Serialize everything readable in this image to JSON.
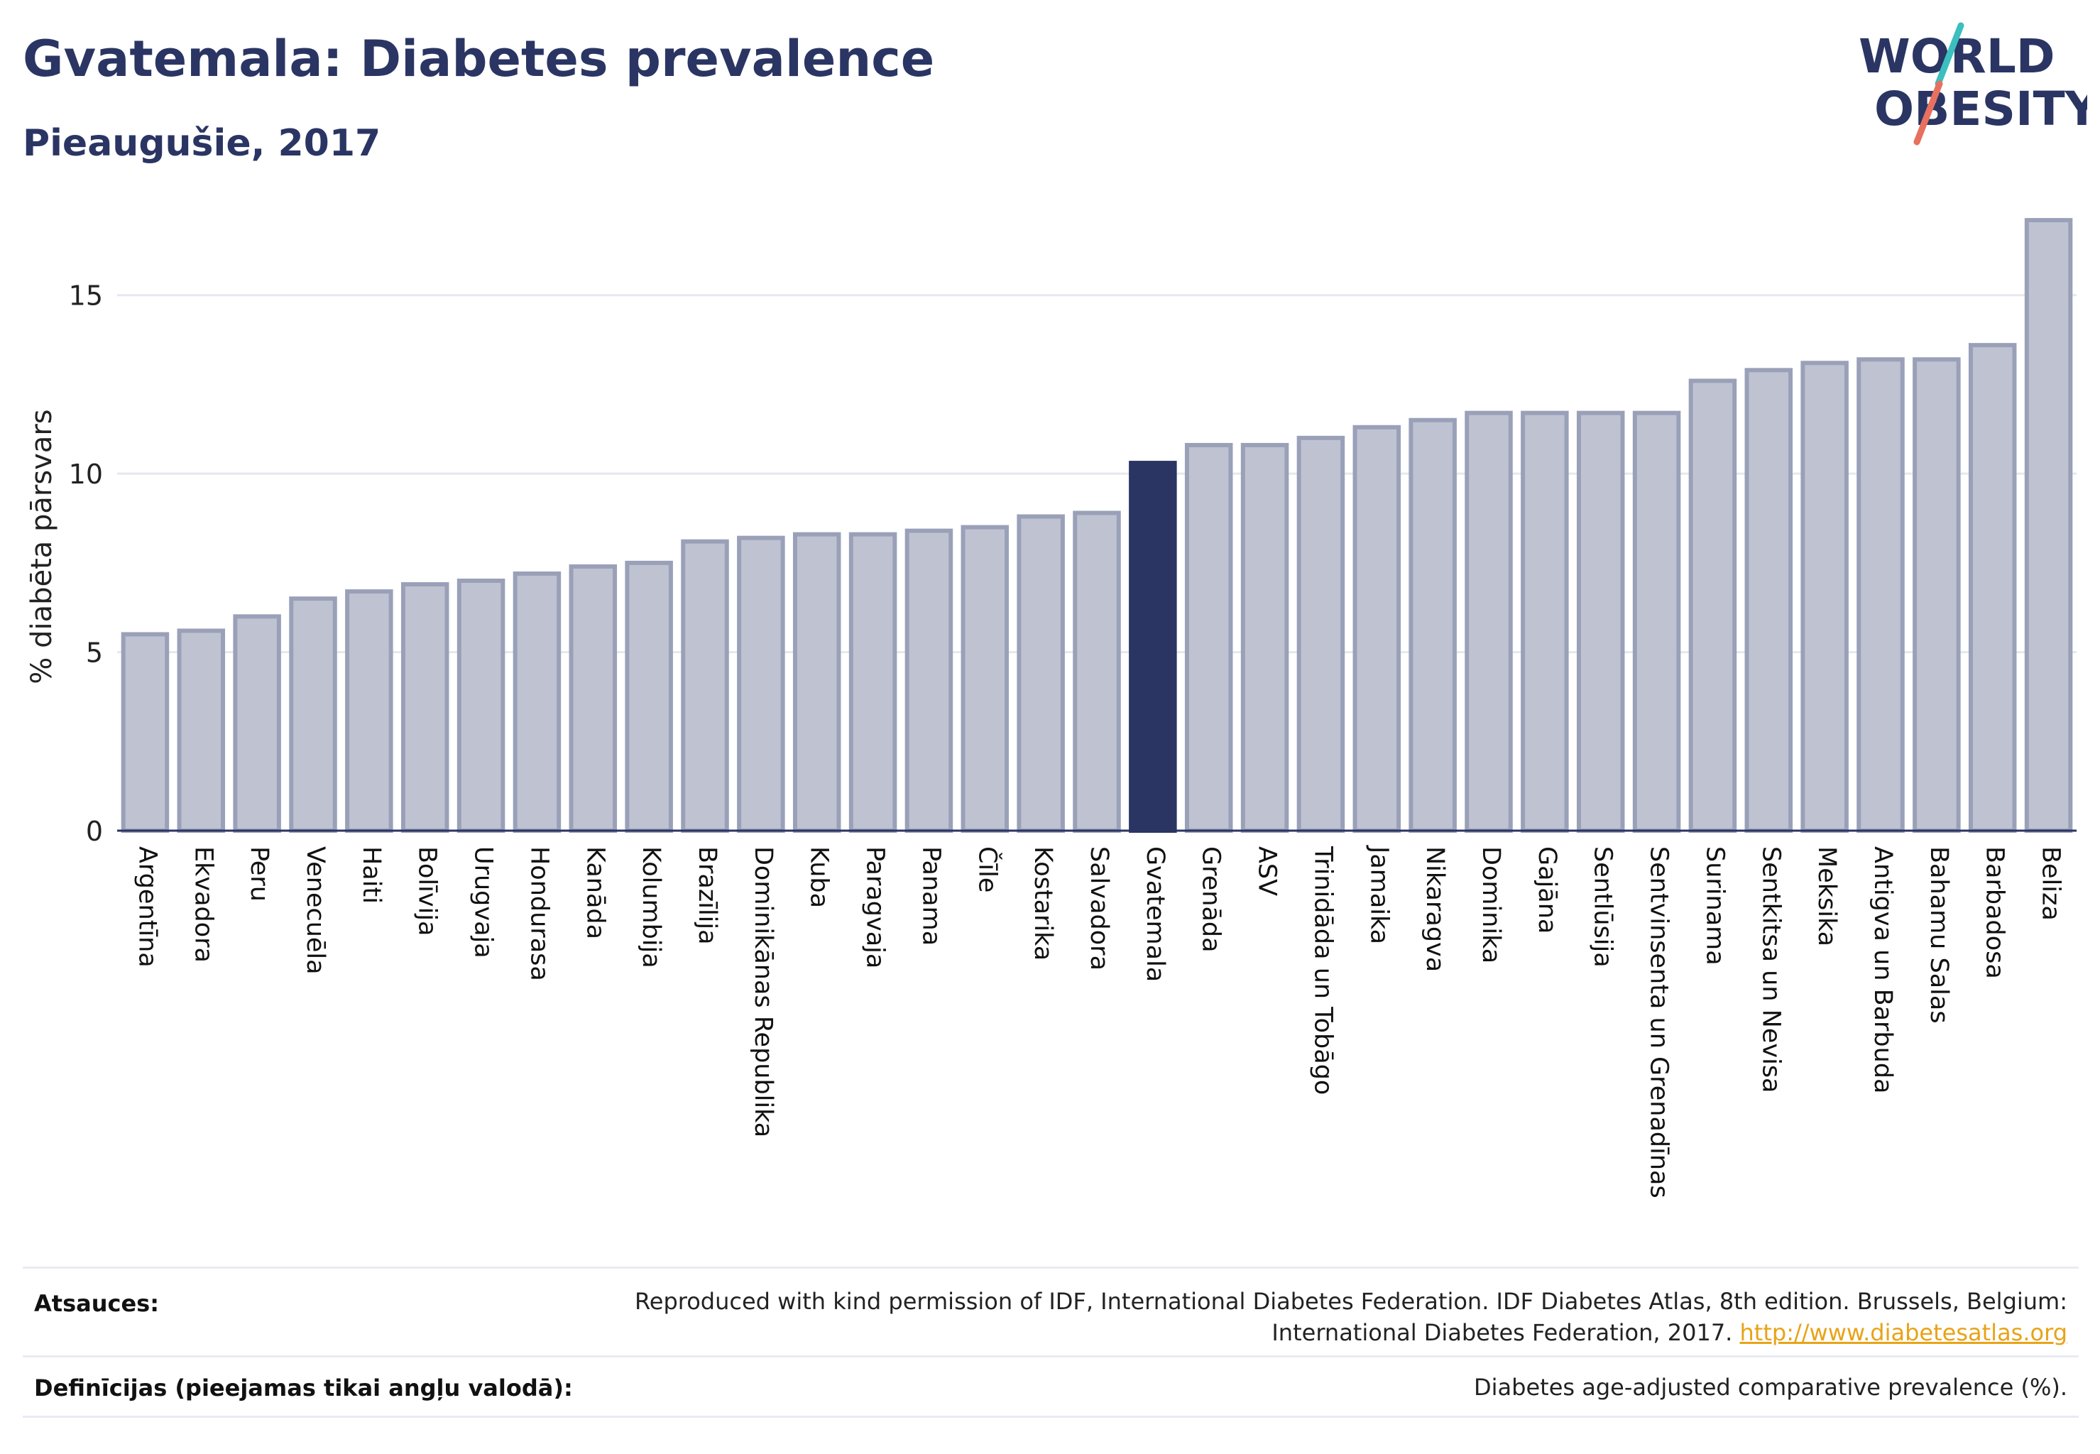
{
  "header": {
    "title": "Gvatemala: Diabetes prevalence",
    "subtitle": "Pieaugušie, 2017"
  },
  "logo": {
    "line1": "WORLD",
    "line2": "OBESITY",
    "colors": {
      "text": "#2a3563",
      "slash_teal": "#3bbfbf",
      "slash_coral": "#e8705f"
    }
  },
  "chart_data": {
    "type": "bar",
    "ylabel": "% diabēta pārsvars",
    "ylim": [
      0,
      17.5
    ],
    "yticks": [
      0,
      5,
      10,
      15
    ],
    "grid": true,
    "highlight": "Gvatemala",
    "colors": {
      "bar": "#bfc3d1",
      "bar_border": "#9aa0b8",
      "highlight": "#2a3563"
    },
    "categories": [
      "Argentīna",
      "Ekvadora",
      "Peru",
      "Venecuēla",
      "Haiti",
      "Bolīvija",
      "Urugvaja",
      "Hondurasa",
      "Kanāda",
      "Kolumbija",
      "Brazīlija",
      "Dominikānas Republika",
      "Kuba",
      "Paragvaja",
      "Panama",
      "Čīle",
      "Kostarika",
      "Salvadora",
      "Gvatemala",
      "Grenāda",
      "ASV",
      "Trinidāda un Tobāgo",
      "Jamaika",
      "Nikaragva",
      "Dominika",
      "Gajāna",
      "Sentlūsija",
      "Sentvinsenta un Grenadīnas",
      "Surinama",
      "Sentkitsa un Nevisa",
      "Meksika",
      "Antigva un Barbuda",
      "Bahamu Salas",
      "Barbadosa",
      "Beliza"
    ],
    "values": [
      5.5,
      5.6,
      6.0,
      6.5,
      6.7,
      6.9,
      7.0,
      7.2,
      7.4,
      7.5,
      8.1,
      8.2,
      8.3,
      8.3,
      8.4,
      8.5,
      8.8,
      8.9,
      10.3,
      10.8,
      10.8,
      11.0,
      11.3,
      11.5,
      11.7,
      11.7,
      11.7,
      11.7,
      12.6,
      12.9,
      13.1,
      13.2,
      13.2,
      13.6,
      17.1
    ]
  },
  "footer": {
    "sources_label": "Atsauces:",
    "sources_text": "Reproduced with kind permission of IDF, International Diabetes Federation. IDF Diabetes Atlas, 8th edition. Brussels, Belgium:",
    "sources_text2": "International Diabetes Federation, 2017.",
    "sources_link": "http://www.diabetesatlas.org",
    "definitions_label": "Definīcijas (pieejamas tikai angļu valodā):",
    "definitions_text": "Diabetes age-adjusted comparative prevalence (%)."
  }
}
